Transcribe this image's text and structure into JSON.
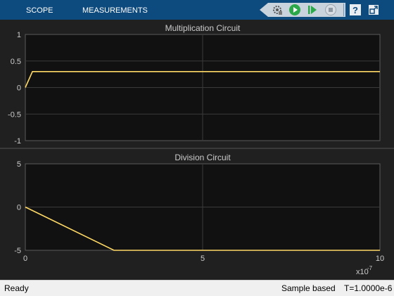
{
  "toolbar": {
    "tabs": [
      {
        "label": "SCOPE"
      },
      {
        "label": "MEASUREMENTS"
      }
    ],
    "buttons": [
      {
        "name": "settings-icon"
      },
      {
        "name": "run-icon"
      },
      {
        "name": "step-forward-icon"
      },
      {
        "name": "stop-icon"
      },
      {
        "name": "help-icon"
      },
      {
        "name": "undock-icon"
      }
    ]
  },
  "status": {
    "ready": "Ready",
    "mode": "Sample based",
    "time": "T=1.0000e-6"
  },
  "colors": {
    "toolbar_bg": "#0d4a7e",
    "plot_bg": "#111111",
    "trace": "#ffd966",
    "text": "#cccccc"
  },
  "chart_data": [
    {
      "type": "line",
      "title": "Multiplication Circuit",
      "xlim": [
        0,
        10
      ],
      "ylim": [
        -1,
        1
      ],
      "yticks": [
        {
          "value": 1,
          "label": "1"
        },
        {
          "value": 0.5,
          "label": "0.5"
        },
        {
          "value": 0,
          "label": "0"
        },
        {
          "value": -0.5,
          "label": "-0.5"
        },
        {
          "value": -1,
          "label": "-1"
        }
      ],
      "grid": true,
      "series": [
        {
          "x": [
            0,
            0.2,
            10
          ],
          "y": [
            0,
            0.3,
            0.3
          ]
        }
      ]
    },
    {
      "type": "line",
      "title": "Division Circuit",
      "xlim": [
        0,
        10
      ],
      "ylim": [
        -5,
        5
      ],
      "xticks": [
        {
          "value": 0,
          "label": "0"
        },
        {
          "value": 5,
          "label": "5"
        },
        {
          "value": 10,
          "label": "10"
        }
      ],
      "yticks": [
        {
          "value": 5,
          "label": "5"
        },
        {
          "value": 0,
          "label": "0"
        },
        {
          "value": -5,
          "label": "-5"
        }
      ],
      "x_multiplier_base": "x10",
      "x_multiplier_exp": "-7",
      "grid": true,
      "series": [
        {
          "x": [
            0,
            2.5,
            10
          ],
          "y": [
            0,
            -5,
            -5
          ]
        }
      ]
    }
  ]
}
